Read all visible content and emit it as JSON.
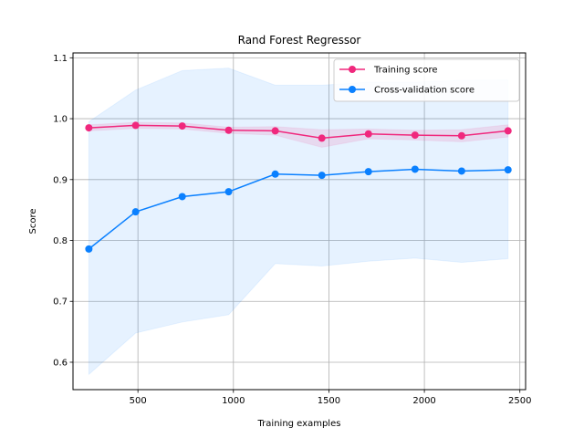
{
  "chart_data": {
    "type": "line",
    "title": "Rand Forest Regressor",
    "xlabel": "Training examples",
    "ylabel": "Score",
    "xlim": [
      160,
      2530
    ],
    "ylim": [
      0.555,
      1.108
    ],
    "xticks": [
      500,
      1000,
      1500,
      2000,
      2500
    ],
    "yticks": [
      0.6,
      0.7,
      0.8,
      0.9,
      1.0,
      1.1
    ],
    "grid": true,
    "legend_position": "top-right",
    "x": [
      243,
      488,
      732,
      975,
      1219,
      1463,
      1707,
      1951,
      2195,
      2438
    ],
    "series": [
      {
        "name": "Training score",
        "color": "#f0287d",
        "values": [
          0.985,
          0.989,
          0.988,
          0.981,
          0.98,
          0.968,
          0.975,
          0.973,
          0.972,
          0.98
        ],
        "band_upper": [
          0.99,
          0.994,
          0.993,
          0.986,
          0.987,
          0.982,
          0.983,
          0.981,
          0.982,
          0.99
        ],
        "band_lower": [
          0.98,
          0.984,
          0.983,
          0.976,
          0.973,
          0.953,
          0.967,
          0.965,
          0.962,
          0.97
        ]
      },
      {
        "name": "Cross-validation score",
        "color": "#0a80ff",
        "values": [
          0.786,
          0.847,
          0.872,
          0.88,
          0.909,
          0.907,
          0.913,
          0.917,
          0.914,
          0.916
        ],
        "band_upper": [
          0.995,
          1.047,
          1.079,
          1.083,
          1.055,
          1.055,
          1.06,
          1.06,
          1.063,
          1.064
        ],
        "band_lower": [
          0.58,
          0.648,
          0.666,
          0.678,
          0.762,
          0.758,
          0.766,
          0.771,
          0.764,
          0.77
        ]
      }
    ]
  }
}
